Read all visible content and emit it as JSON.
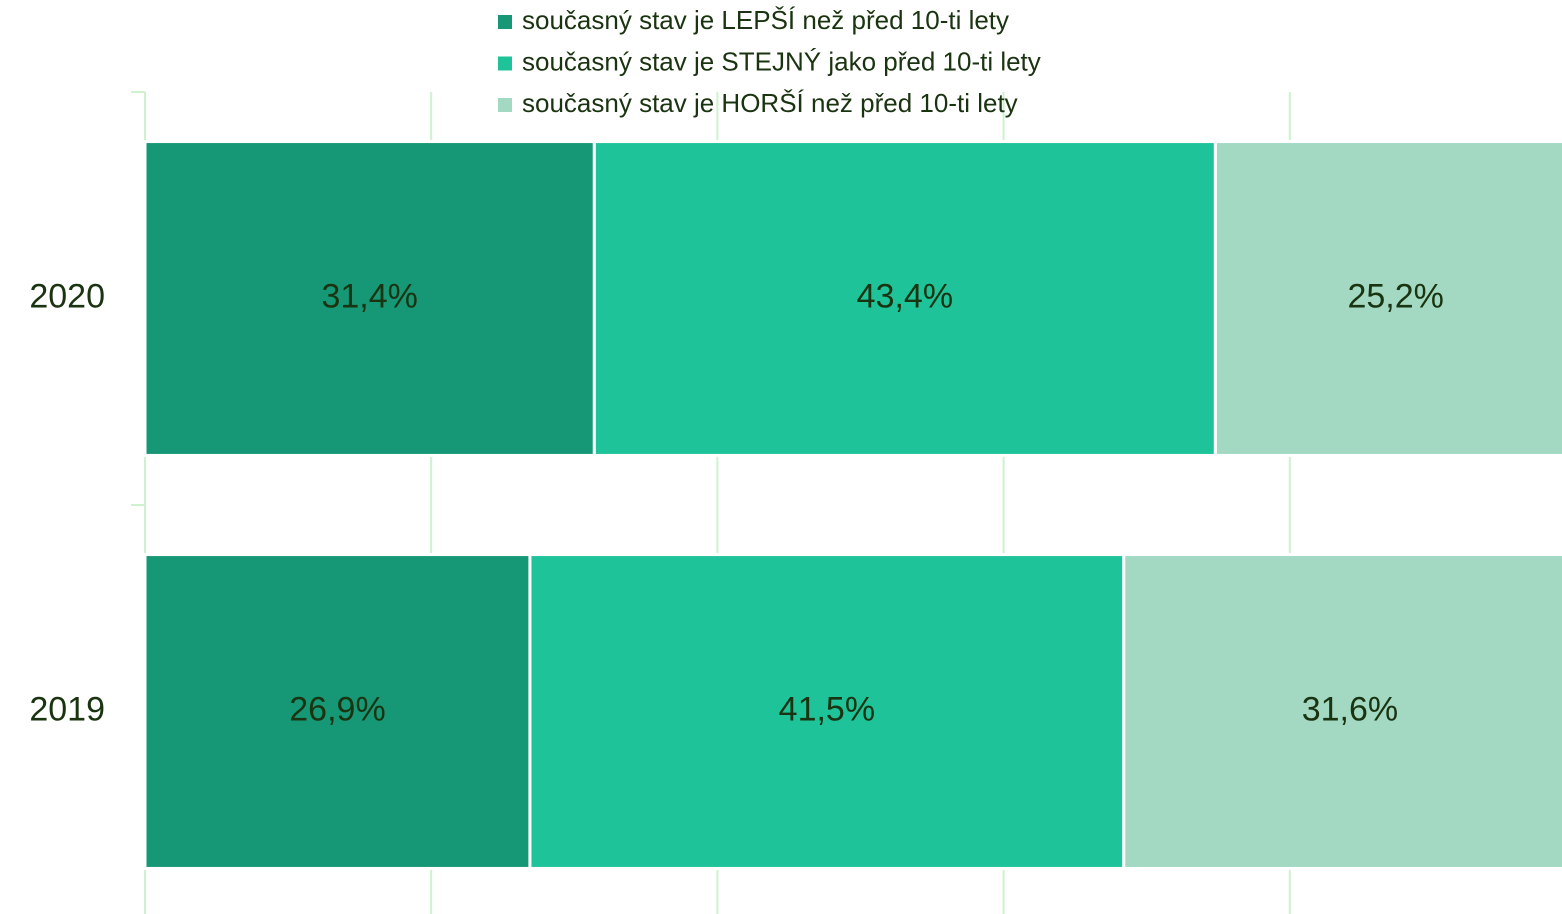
{
  "chart_data": {
    "type": "stacked-bar-horizontal",
    "categories": [
      "2020",
      "2019"
    ],
    "series": [
      {
        "name": "současný stav je LEPŠÍ než před 10-ti lety",
        "color": "#169877",
        "values": [
          31.4,
          26.9
        ],
        "value_labels": [
          "31,4%",
          "26,9%"
        ]
      },
      {
        "name": "současný stav je STEJNÝ jako před 10-ti lety",
        "color": "#1fc39a",
        "values": [
          43.4,
          41.5
        ],
        "value_labels": [
          "43,4%",
          "41,5%"
        ]
      },
      {
        "name": "současný stav je HORŠÍ než před 10-ti lety",
        "color": "#a3d9c3",
        "values": [
          25.2,
          31.6
        ],
        "value_labels": [
          "25,2%",
          "31,6%"
        ]
      }
    ],
    "xlim": [
      0,
      100
    ],
    "xticks": [
      0,
      20,
      40,
      60,
      80,
      100
    ],
    "grid": true
  }
}
